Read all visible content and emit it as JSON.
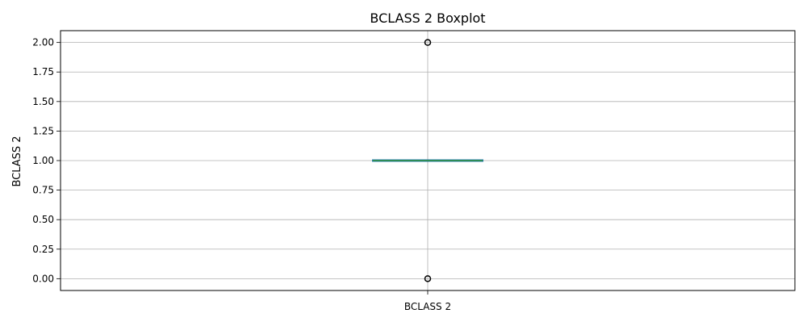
{
  "chart_data": {
    "type": "box",
    "title": "BCLASS 2 Boxplot",
    "xlabel": "",
    "ylabel": "BCLASS 2",
    "categories": [
      "BCLASS 2"
    ],
    "boxes": [
      {
        "name": "BCLASS 2",
        "whisker_low": 1.0,
        "q1": 1.0,
        "median": 1.0,
        "q3": 1.0,
        "whisker_high": 1.0,
        "outliers": [
          0.0,
          2.0
        ]
      }
    ],
    "ylim": [
      -0.1,
      2.1
    ],
    "yticks": [
      "0.00",
      "0.25",
      "0.50",
      "0.75",
      "1.00",
      "1.25",
      "1.50",
      "1.75",
      "2.00"
    ],
    "grid": true,
    "colors": {
      "box": "#1f77b4",
      "whisker": "#2ca02c",
      "median": "#2e8b57",
      "outlier": "#000000",
      "grid": "#b0b0b0"
    }
  }
}
